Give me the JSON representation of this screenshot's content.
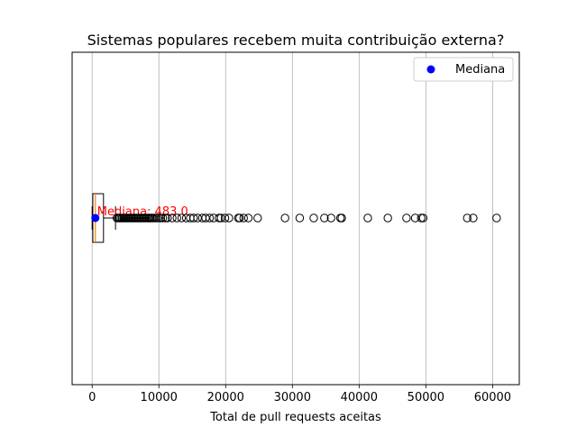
{
  "chart_data": {
    "type": "boxplot",
    "orientation": "horizontal",
    "title": "Sistemas populares recebem muita contribuição externa?",
    "xlabel": "Total de pull requests aceitas",
    "ylabel": "",
    "xlim": [
      -3000,
      64000
    ],
    "xticks": [
      0,
      10000,
      20000,
      30000,
      40000,
      50000,
      60000
    ],
    "xtick_labels": [
      "0",
      "10000",
      "20000",
      "30000",
      "40000",
      "50000",
      "60000"
    ],
    "grid": "vertical",
    "legend": {
      "placement": "top-right",
      "entries": [
        {
          "label": "Mediana",
          "color": "#0000ff",
          "marker": "circle"
        }
      ]
    },
    "box": {
      "q1": 100,
      "median": 483,
      "q3": 1700,
      "whisker_low": 0,
      "whisker_high": 3500
    },
    "median_point": {
      "x": 483
    },
    "median_annotation": "Mediana: 483.0",
    "outliers": [
      3700,
      3900,
      4100,
      4300,
      4500,
      4700,
      4900,
      5100,
      5300,
      5500,
      5700,
      5900,
      6100,
      6300,
      6500,
      6700,
      6900,
      7100,
      7300,
      7500,
      7700,
      7900,
      8100,
      8300,
      8500,
      8700,
      8900,
      9100,
      9400,
      9700,
      10000,
      10300,
      10600,
      11000,
      11300,
      12000,
      12700,
      13400,
      14100,
      14700,
      15200,
      15800,
      16500,
      17000,
      17600,
      18200,
      19000,
      19300,
      19900,
      20500,
      21900,
      22100,
      22700,
      23400,
      24800,
      28900,
      31100,
      33200,
      34800,
      35800,
      37200,
      37400,
      41300,
      44300,
      47100,
      48400,
      49300,
      49600,
      56200,
      57100,
      60600
    ],
    "colors": {
      "median_line": "#ff7f0e",
      "median_point": "#0000ff",
      "annotation": "#ff0000",
      "grid": "#b0b0b0",
      "box": "#000000"
    }
  }
}
